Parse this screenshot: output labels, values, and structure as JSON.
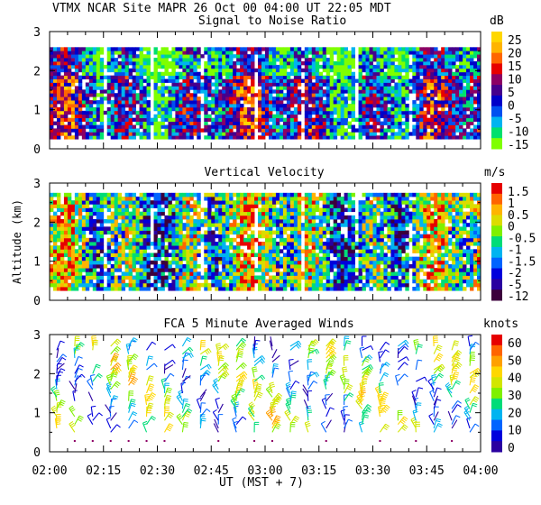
{
  "header": {
    "line": "VTMX  NCAR Site  MAPR 26 Oct 00  04:00 UT  22:05  MDT"
  },
  "colors": {
    "snr": [
      "#7fff00",
      "#00e06e",
      "#00b4f0",
      "#0050f0",
      "#0000c8",
      "#46008c",
      "#8c0064",
      "#e60000",
      "#ff6600",
      "#ffb400",
      "#ffd700"
    ],
    "vv": [
      "#3c003c",
      "#2a00a0",
      "#0000dc",
      "#0064ff",
      "#00b4f0",
      "#00dc78",
      "#7ff000",
      "#dcdc00",
      "#ffb400",
      "#ff6400",
      "#e60000"
    ],
    "wind": [
      "#2a00a0",
      "#0000dc",
      "#0064ff",
      "#00b4f0",
      "#00dc78",
      "#7ff000",
      "#d2e600",
      "#ffd700",
      "#ffa000",
      "#ff6400",
      "#e60000"
    ]
  },
  "chart_data": [
    {
      "type": "heatmap",
      "id": "snr",
      "title": "Signal to Noise Ratio",
      "ylabel": "",
      "unit_label": "dB",
      "ylim": [
        0,
        3
      ],
      "y_ticks": [
        "0",
        "1",
        "2",
        "3"
      ],
      "x_range_minutes": [
        0,
        120
      ],
      "colorbar_labels": [
        "25",
        "20",
        "15",
        "10",
        "5",
        "0",
        "-5",
        "-10",
        "-15"
      ],
      "value_range": [
        -15,
        25
      ],
      "data_top_km": 2.6,
      "gap_times": [
        15,
        28,
        42,
        57,
        70,
        85,
        100
      ]
    },
    {
      "type": "heatmap",
      "id": "vv",
      "title": "Vertical Velocity",
      "ylabel": "Altitude (km)",
      "unit_label": "m/s",
      "ylim": [
        0,
        3
      ],
      "y_ticks": [
        "0",
        "1",
        "2",
        "3"
      ],
      "x_range_minutes": [
        0,
        120
      ],
      "colorbar_labels": [
        "1.5",
        "1",
        "0.5",
        "0",
        "-0.5",
        "-1",
        "-1.5",
        "-2",
        "-5",
        "-12"
      ],
      "value_range": [
        -12,
        1.5
      ],
      "data_top_km": 2.75,
      "gap_times": [
        15,
        28,
        42,
        57,
        70,
        85,
        100
      ]
    },
    {
      "type": "scatter",
      "id": "winds",
      "title": "FCA 5 Minute Averaged Winds",
      "ylabel": "",
      "unit_label": "knots",
      "ylim": [
        0,
        3
      ],
      "y_ticks": [
        "0",
        "1",
        "2",
        "3"
      ],
      "x_range_minutes": [
        0,
        120
      ],
      "colorbar_labels": [
        "60",
        "50",
        "40",
        "30",
        "20",
        "10",
        "0"
      ],
      "value_range": [
        0,
        60
      ],
      "xlabel": "UT  (MST + 7)",
      "x_ticks": [
        "02:00",
        "02:15",
        "02:30",
        "02:45",
        "03:00",
        "03:15",
        "03:30",
        "03:45",
        "04:00"
      ]
    }
  ]
}
